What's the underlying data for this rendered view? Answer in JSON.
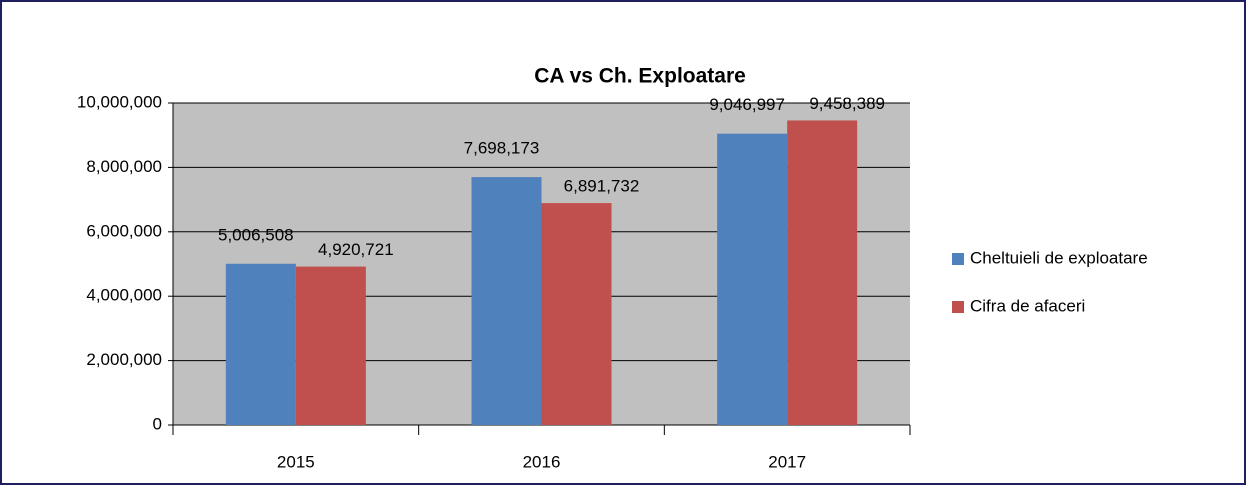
{
  "chart_data": {
    "type": "bar",
    "title": "CA vs Ch. Exploatare",
    "categories": [
      "2015",
      "2016",
      "2017"
    ],
    "series": [
      {
        "name": "Cheltuieli de exploatare",
        "color": "#4f81bd",
        "values": [
          5006508,
          7698173,
          9046997
        ],
        "value_labels": [
          "5,006,508",
          "7,698,173",
          "9,046,997"
        ]
      },
      {
        "name": "Cifra de afaceri",
        "color": "#c0504d",
        "values": [
          4920721,
          6891732,
          9458389
        ],
        "value_labels": [
          "4,920,721",
          "6,891,732",
          "9,458,389"
        ]
      }
    ],
    "ylim": [
      0,
      10000000
    ],
    "yticks": [
      0,
      {
        "value": 2000000,
        "label": "2,000,000"
      },
      {
        "value": 4000000,
        "label": "4,000,000"
      },
      {
        "value": 6000000,
        "label": "6,000,000"
      },
      {
        "value": 8000000,
        "label": "8,000,000"
      },
      {
        "value": 10000000,
        "label": "10,000,000"
      }
    ],
    "grid": true,
    "legend": "right"
  }
}
